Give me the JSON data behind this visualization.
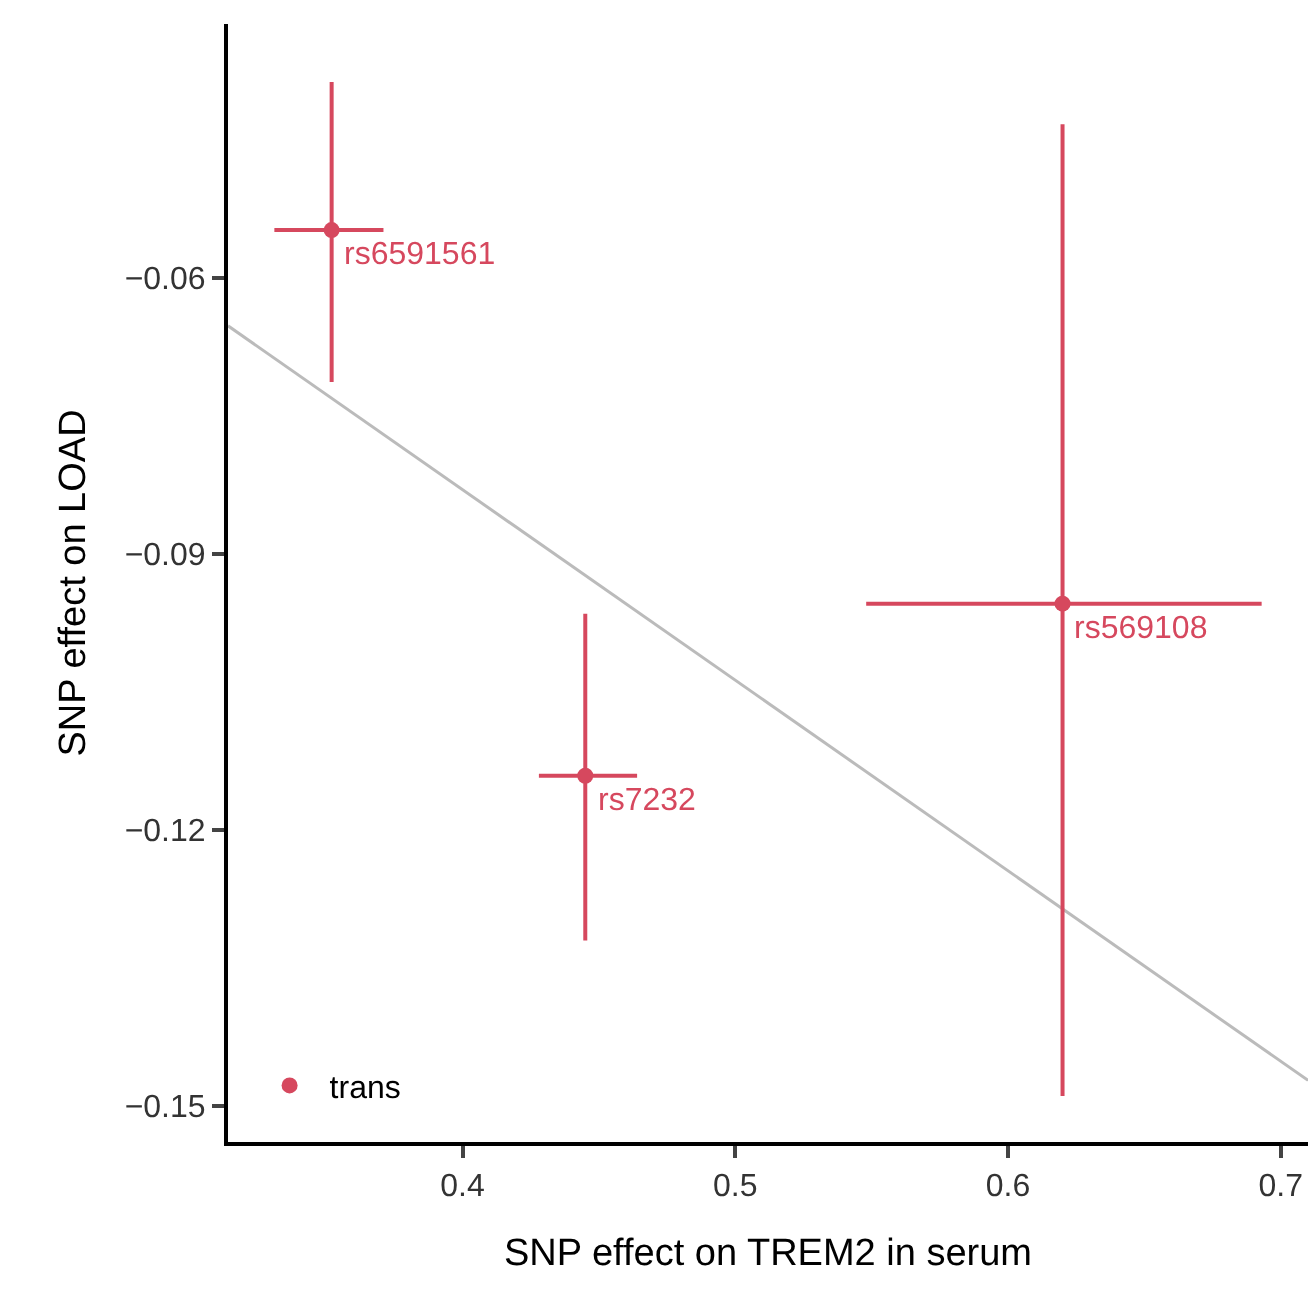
{
  "chart_data": {
    "type": "scatter",
    "xlabel": "SNP effect on TREM2 in serum",
    "ylabel": "SNP effect on LOAD",
    "xlim": [
      0.314,
      0.71
    ],
    "xticks": [
      0.4,
      0.5,
      0.6,
      0.7
    ],
    "ylim": [
      -0.1539,
      -0.0324
    ],
    "yticks": [
      {
        "value": -0.06,
        "label": "−0.06"
      },
      {
        "value": -0.09,
        "label": "−0.09"
      },
      {
        "value": -0.12,
        "label": "−0.12"
      },
      {
        "value": -0.15,
        "label": "−0.15"
      }
    ],
    "grid": false,
    "legend": "bottom left",
    "series": [
      {
        "name": "trans",
        "color": "#d6485e",
        "marker": "circle",
        "x": [
          0.352,
          0.445,
          0.62
        ],
        "values": [
          -0.0548,
          -0.1141,
          -0.0954
        ],
        "errors": [
          [
            -0.0713,
            -0.0387
          ],
          [
            -0.132,
            -0.0965
          ],
          [
            -0.1489,
            -0.0433
          ]
        ],
        "xerrors": [
          [
            0.331,
            0.371
          ],
          [
            0.428,
            0.464
          ],
          [
            0.548,
            0.693
          ]
        ]
      },
      {
        "type": "line",
        "color": "#bbbbbb",
        "x": [
          0.314,
          0.71
        ],
        "values": [
          -0.0652,
          -0.1472
        ]
      }
    ],
    "annotations": [
      {
        "text": "rs6591561",
        "x": 0.352,
        "y": -0.0548
      },
      {
        "text": "rs7232",
        "x": 0.445,
        "y": -0.1141
      },
      {
        "text": "rs569108",
        "x": 0.62,
        "y": -0.0954
      }
    ]
  }
}
